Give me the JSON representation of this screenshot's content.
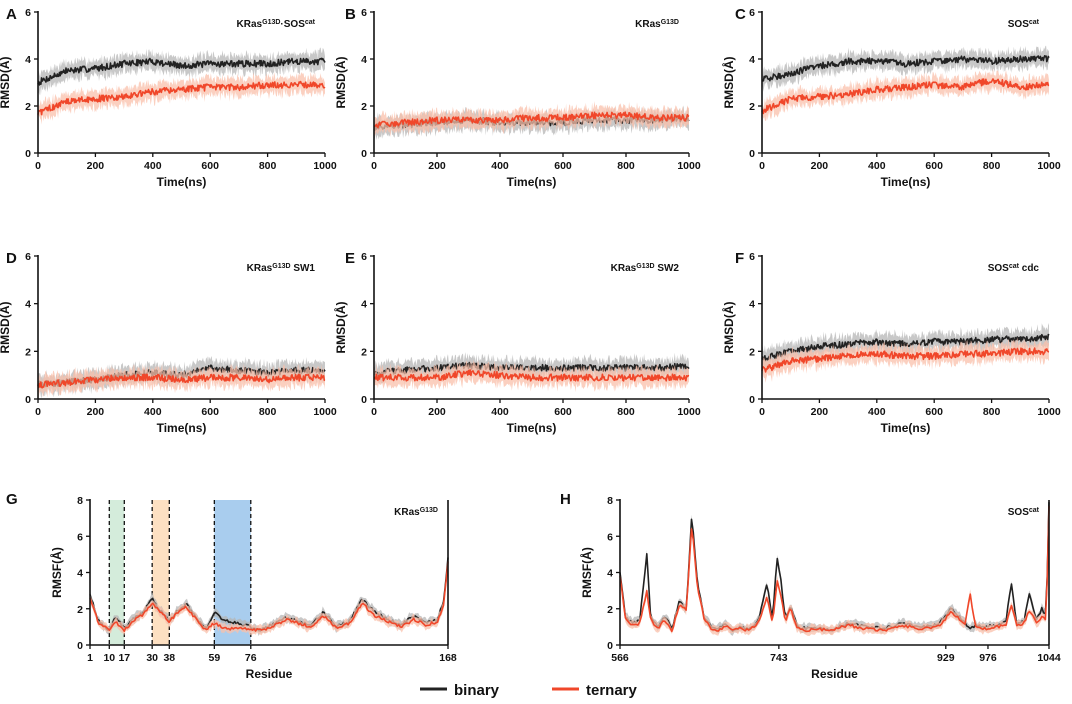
{
  "figure": {
    "legend": {
      "entries": [
        {
          "name": "binary",
          "color": "#222222"
        },
        {
          "name": "ternary",
          "color": "#f0472a"
        }
      ]
    }
  },
  "chart_data": [
    {
      "id": "A",
      "type": "line",
      "title": "KRas·SOS",
      "title_parts": [
        "KRas",
        "G13D",
        "·SOS",
        "cat"
      ],
      "xlabel": "Time(ns)",
      "ylabel": "RMSD(Å)",
      "xlim": [
        0,
        1000
      ],
      "ylim": [
        0,
        6
      ],
      "xticks": [
        0,
        200,
        400,
        600,
        800,
        1000
      ],
      "yticks": [
        0,
        2,
        4,
        6
      ],
      "x": [
        0,
        100,
        200,
        300,
        400,
        500,
        600,
        700,
        800,
        900,
        1000
      ],
      "series": [
        {
          "name": "binary",
          "values": [
            3.0,
            3.5,
            3.6,
            3.8,
            3.9,
            3.7,
            3.8,
            3.8,
            3.8,
            3.9,
            3.9
          ]
        },
        {
          "name": "ternary",
          "values": [
            1.7,
            2.2,
            2.3,
            2.4,
            2.6,
            2.7,
            2.8,
            2.8,
            2.9,
            2.9,
            2.9
          ]
        }
      ]
    },
    {
      "id": "B",
      "type": "line",
      "title": "KRas",
      "title_parts": [
        "KRas",
        "G13D",
        "",
        ""
      ],
      "xlabel": "Time(ns)",
      "ylabel": "RMSD(Å)",
      "xlim": [
        0,
        1000
      ],
      "ylim": [
        0,
        6
      ],
      "xticks": [
        0,
        200,
        400,
        600,
        800,
        1000
      ],
      "yticks": [
        0,
        2,
        4,
        6
      ],
      "x": [
        0,
        100,
        200,
        300,
        400,
        500,
        600,
        700,
        800,
        900,
        1000
      ],
      "series": [
        {
          "name": "binary",
          "values": [
            1.1,
            1.2,
            1.3,
            1.4,
            1.3,
            1.3,
            1.3,
            1.4,
            1.4,
            1.4,
            1.5
          ]
        },
        {
          "name": "ternary",
          "values": [
            1.2,
            1.3,
            1.4,
            1.4,
            1.4,
            1.5,
            1.5,
            1.6,
            1.6,
            1.5,
            1.5
          ]
        }
      ]
    },
    {
      "id": "C",
      "type": "line",
      "title": "SOS",
      "title_parts": [
        "SOS",
        "cat",
        "",
        ""
      ],
      "xlabel": "Time(ns)",
      "ylabel": "RMSD(Å)",
      "xlim": [
        0,
        1000
      ],
      "ylim": [
        0,
        6
      ],
      "xticks": [
        0,
        200,
        400,
        600,
        800,
        1000
      ],
      "yticks": [
        0,
        2,
        4,
        6
      ],
      "x": [
        0,
        100,
        200,
        300,
        400,
        500,
        600,
        700,
        800,
        900,
        1000
      ],
      "series": [
        {
          "name": "binary",
          "values": [
            3.1,
            3.4,
            3.7,
            3.9,
            3.9,
            3.8,
            3.9,
            4.0,
            3.9,
            4.0,
            4.0
          ]
        },
        {
          "name": "ternary",
          "values": [
            1.8,
            2.3,
            2.4,
            2.5,
            2.7,
            2.8,
            2.9,
            2.8,
            3.1,
            2.8,
            2.9
          ]
        }
      ]
    },
    {
      "id": "D",
      "type": "line",
      "title": "KRas SW1",
      "title_parts": [
        "KRas",
        "G13D",
        "SW1",
        ""
      ],
      "xlabel": "Time(ns)",
      "ylabel": "RMSD(Å)",
      "xlim": [
        0,
        1000
      ],
      "ylim": [
        0,
        6
      ],
      "xticks": [
        0,
        200,
        400,
        600,
        800,
        1000
      ],
      "yticks": [
        0,
        2,
        4,
        6
      ],
      "x": [
        0,
        100,
        200,
        300,
        400,
        500,
        600,
        700,
        800,
        900,
        1000
      ],
      "series": [
        {
          "name": "binary",
          "values": [
            0.6,
            0.7,
            0.8,
            1.0,
            1.1,
            1.0,
            1.3,
            1.2,
            1.1,
            1.2,
            1.2
          ]
        },
        {
          "name": "ternary",
          "values": [
            0.6,
            0.7,
            0.8,
            0.9,
            0.9,
            0.8,
            0.9,
            0.9,
            0.8,
            0.9,
            0.9
          ]
        }
      ]
    },
    {
      "id": "E",
      "type": "line",
      "title": "KRas SW2",
      "title_parts": [
        "KRas",
        "G13D",
        "SW2",
        ""
      ],
      "xlabel": "Time(ns)",
      "ylabel": "RMSD(Å)",
      "xlim": [
        0,
        1000
      ],
      "ylim": [
        0,
        6
      ],
      "xticks": [
        0,
        200,
        400,
        600,
        800,
        1000
      ],
      "yticks": [
        0,
        2,
        4,
        6
      ],
      "x": [
        0,
        100,
        200,
        300,
        400,
        500,
        600,
        700,
        800,
        900,
        1000
      ],
      "series": [
        {
          "name": "binary",
          "values": [
            1.1,
            1.2,
            1.3,
            1.4,
            1.3,
            1.3,
            1.3,
            1.3,
            1.3,
            1.3,
            1.4
          ]
        },
        {
          "name": "ternary",
          "values": [
            0.9,
            0.9,
            0.9,
            1.1,
            1.0,
            0.9,
            0.9,
            0.9,
            0.9,
            0.9,
            0.9
          ]
        }
      ]
    },
    {
      "id": "F",
      "type": "line",
      "title": "SOS cdc",
      "title_parts": [
        "SOS",
        "cat",
        "cdc",
        ""
      ],
      "xlabel": "Time(ns)",
      "ylabel": "RMSD(Å)",
      "xlim": [
        0,
        1000
      ],
      "ylim": [
        0,
        6
      ],
      "xticks": [
        0,
        200,
        400,
        600,
        800,
        1000
      ],
      "yticks": [
        0,
        2,
        4,
        6
      ],
      "x": [
        0,
        100,
        200,
        300,
        400,
        500,
        600,
        700,
        800,
        900,
        1000
      ],
      "series": [
        {
          "name": "binary",
          "values": [
            1.7,
            2.0,
            2.2,
            2.3,
            2.4,
            2.3,
            2.4,
            2.4,
            2.5,
            2.5,
            2.6
          ]
        },
        {
          "name": "ternary",
          "values": [
            1.2,
            1.6,
            1.7,
            1.8,
            1.9,
            1.8,
            1.8,
            1.9,
            1.9,
            2.0,
            2.0
          ]
        }
      ]
    },
    {
      "id": "G",
      "type": "line",
      "title": "KRas",
      "title_parts": [
        "KRas",
        "G13D",
        "",
        ""
      ],
      "xlabel": "Residue",
      "ylabel": "RMSF(Å)",
      "xlim": [
        1,
        168
      ],
      "ylim": [
        0,
        8
      ],
      "xticks": [
        1,
        10,
        17,
        30,
        38,
        59,
        76,
        168
      ],
      "yticks": [
        0,
        2,
        4,
        6,
        8
      ],
      "dashed_lines": [
        10,
        17,
        30,
        38,
        59,
        76
      ],
      "regions": [
        {
          "from": 10,
          "to": 17,
          "color": "#d4ecdb"
        },
        {
          "from": 30,
          "to": 38,
          "color": "#fde0c2"
        },
        {
          "from": 59,
          "to": 76,
          "color": "#a9cdee"
        }
      ],
      "x": [
        1,
        5,
        10,
        13,
        17,
        22,
        26,
        30,
        33,
        38,
        42,
        46,
        50,
        55,
        59,
        62,
        66,
        70,
        76,
        80,
        86,
        92,
        98,
        104,
        110,
        116,
        122,
        128,
        134,
        140,
        146,
        152,
        158,
        163,
        166,
        168
      ],
      "series": [
        {
          "name": "binary",
          "values": [
            2.8,
            1.3,
            0.8,
            1.6,
            0.9,
            1.5,
            1.8,
            2.6,
            2.0,
            1.4,
            1.9,
            2.3,
            1.6,
            0.9,
            1.8,
            1.5,
            1.3,
            1.2,
            1.0,
            0.8,
            1.1,
            1.5,
            1.3,
            1.1,
            1.8,
            1.0,
            1.3,
            2.5,
            1.8,
            1.4,
            1.1,
            1.6,
            1.2,
            1.4,
            2.4,
            4.8
          ]
        },
        {
          "name": "ternary",
          "values": [
            2.6,
            1.2,
            0.8,
            1.3,
            0.8,
            1.4,
            1.7,
            2.3,
            1.9,
            1.3,
            1.8,
            2.1,
            1.5,
            0.8,
            1.2,
            1.0,
            0.9,
            0.9,
            0.9,
            0.8,
            1.0,
            1.4,
            1.2,
            1.0,
            1.6,
            0.9,
            1.2,
            2.3,
            1.6,
            1.3,
            1.0,
            1.4,
            1.1,
            1.3,
            2.2,
            4.6
          ]
        }
      ]
    },
    {
      "id": "H",
      "type": "line",
      "title": "SOS",
      "title_parts": [
        "SOS",
        "cat",
        "",
        ""
      ],
      "xlabel": "Residue",
      "ylabel": "RMSF(Å)",
      "xlim": [
        566,
        1044
      ],
      "ylim": [
        0,
        8
      ],
      "xticks": [
        566,
        743,
        929,
        976,
        1044
      ],
      "yticks": [
        0,
        2,
        4,
        6,
        8
      ],
      "x": [
        566,
        572,
        580,
        588,
        596,
        600,
        608,
        616,
        624,
        632,
        640,
        646,
        652,
        660,
        668,
        676,
        684,
        692,
        700,
        710,
        720,
        730,
        736,
        741,
        746,
        750,
        756,
        764,
        774,
        784,
        800,
        820,
        840,
        860,
        880,
        900,
        920,
        935,
        945,
        950,
        956,
        962,
        972,
        985,
        996,
        1002,
        1008,
        1016,
        1022,
        1030,
        1036,
        1041,
        1044
      ],
      "series": [
        {
          "name": "binary",
          "values": [
            4.0,
            1.6,
            1.2,
            1.4,
            5.1,
            1.6,
            1.0,
            1.6,
            0.9,
            2.4,
            2.0,
            7.2,
            3.5,
            1.5,
            1.0,
            0.9,
            1.2,
            0.8,
            1.0,
            0.9,
            1.3,
            3.4,
            1.3,
            4.9,
            3.3,
            1.4,
            2.2,
            1.0,
            0.9,
            1.0,
            0.8,
            1.2,
            1.0,
            0.9,
            1.2,
            1.0,
            1.1,
            2.0,
            1.5,
            1.2,
            0.9,
            1.1,
            1.0,
            1.1,
            1.3,
            3.5,
            1.2,
            1.3,
            2.8,
            1.4,
            2.0,
            1.6,
            7.9
          ]
        },
        {
          "name": "ternary",
          "values": [
            3.8,
            1.5,
            1.1,
            1.2,
            3.0,
            1.4,
            0.9,
            1.4,
            0.8,
            2.2,
            1.9,
            6.7,
            3.3,
            1.4,
            0.9,
            0.8,
            1.1,
            0.8,
            0.9,
            0.8,
            1.2,
            2.7,
            1.2,
            3.6,
            2.6,
            1.3,
            2.0,
            0.9,
            0.8,
            0.9,
            0.8,
            1.1,
            0.9,
            0.8,
            1.1,
            0.9,
            1.0,
            1.8,
            1.4,
            1.1,
            2.9,
            1.0,
            0.9,
            1.0,
            1.1,
            2.2,
            1.1,
            1.2,
            1.9,
            1.3,
            1.5,
            1.4,
            7.7
          ]
        }
      ]
    }
  ]
}
